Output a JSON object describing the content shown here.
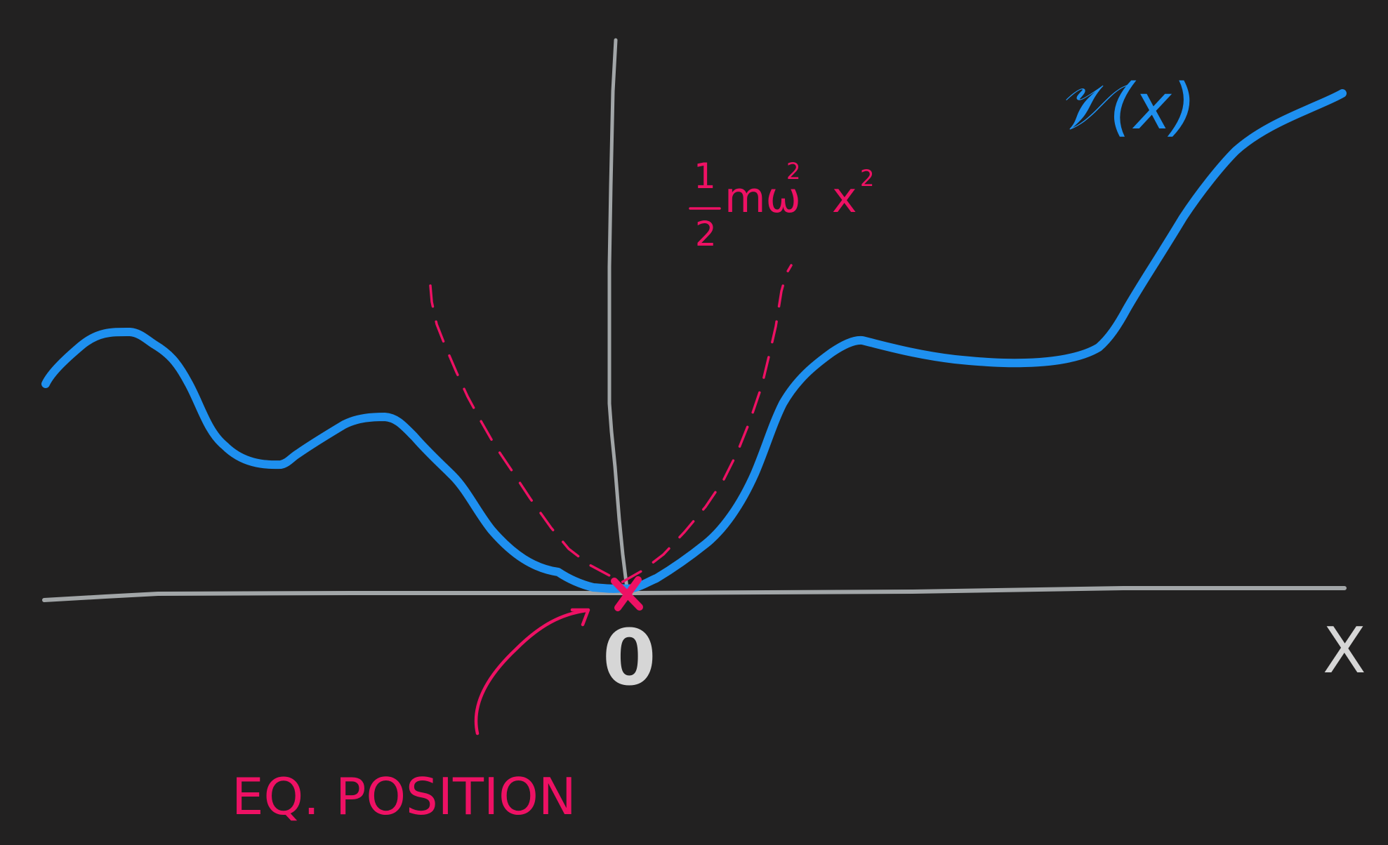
{
  "colors": {
    "background": "#222121",
    "axis": "#a2a6a8",
    "potential": "#1e90f0",
    "approximation": "#ee1164",
    "origin_label": "#d6d6d6"
  },
  "labels": {
    "potential_name": "𝒱(x)",
    "harmonic_coefficient_numerator": "1",
    "harmonic_coefficient_denominator": "2",
    "harmonic_tail": "mω",
    "omega_exponent": "2",
    "harmonic_x": "x",
    "x_exponent": "2",
    "origin": "0",
    "x_axis": "X",
    "equilibrium": "EQ. POSITION"
  },
  "icons": {
    "equilibrium_marker": "x-mark-icon",
    "annotation_arrow": "curved-arrow-icon"
  }
}
